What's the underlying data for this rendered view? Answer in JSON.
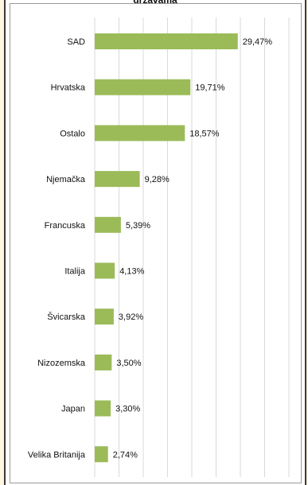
{
  "chart_data": {
    "type": "bar",
    "orientation": "horizontal",
    "title": "državama",
    "categories": [
      "SAD",
      "Hrvatska",
      "Ostalo",
      "Njemačka",
      "Francuska",
      "Italija",
      "Švicarska",
      "Nizozemska",
      "Japan",
      "Velika Britanija"
    ],
    "values": [
      29.47,
      19.71,
      18.57,
      9.28,
      5.39,
      4.13,
      3.92,
      3.5,
      3.3,
      2.74
    ],
    "value_labels": [
      "29,47%",
      "19,71%",
      "18,57%",
      "9,28%",
      "5,39%",
      "4,13%",
      "3,92%",
      "3,50%",
      "3,30%",
      "2,74%"
    ],
    "xlim": [
      0,
      40
    ],
    "gridlines": "vertical",
    "bar_color": "#9bbb59",
    "legend": "none"
  }
}
